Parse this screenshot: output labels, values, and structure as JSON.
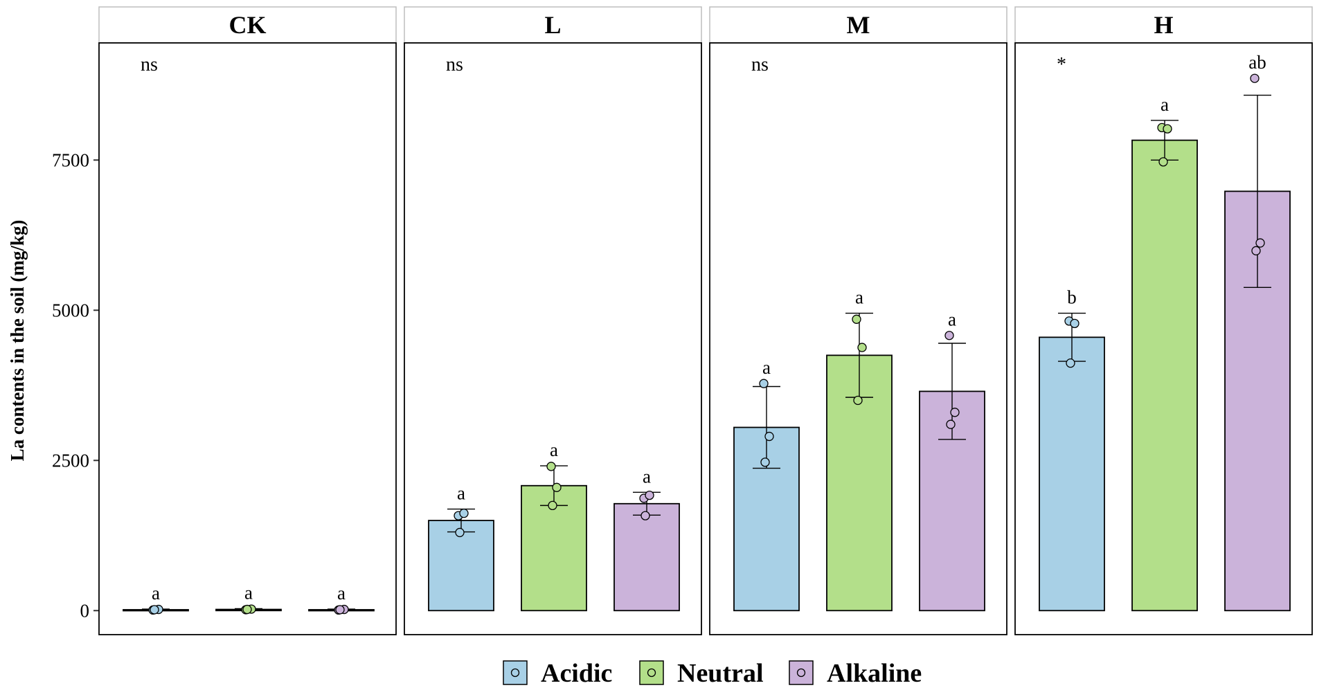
{
  "chart_data": {
    "type": "bar",
    "ylabel": "La contents in the soil (mg/kg)",
    "ylim": [
      -400,
      9450
    ],
    "yticks": [
      0,
      2500,
      5000,
      7500
    ],
    "error_bars": "SD",
    "groups": [
      "Acidic",
      "Neutral",
      "Alkaline"
    ],
    "colors": {
      "Acidic": "#a8d0e6",
      "Neutral": "#b3df8a",
      "Alkaline": "#cbb3da"
    },
    "legend": {
      "position": "bottom",
      "items": [
        {
          "label": "Acidic",
          "color": "#a8d0e6"
        },
        {
          "label": "Neutral",
          "color": "#b3df8a"
        },
        {
          "label": "Alkaline",
          "color": "#cbb3da"
        }
      ]
    },
    "panels": [
      {
        "title": "CK",
        "test": "ns",
        "bars": [
          {
            "group": "Acidic",
            "mean": 15,
            "sd": 10,
            "letter": "a",
            "points": [
              10,
              20,
              15
            ]
          },
          {
            "group": "Neutral",
            "mean": 20,
            "sd": 12,
            "letter": "a",
            "points": [
              15,
              25,
              20
            ]
          },
          {
            "group": "Alkaline",
            "mean": 15,
            "sd": 10,
            "letter": "a",
            "points": [
              10,
              20,
              15
            ]
          }
        ]
      },
      {
        "title": "L",
        "test": "ns",
        "bars": [
          {
            "group": "Acidic",
            "mean": 1500,
            "sd": 190,
            "letter": "a",
            "points": [
              1580,
              1620,
              1300
            ]
          },
          {
            "group": "Neutral",
            "mean": 2080,
            "sd": 330,
            "letter": "a",
            "points": [
              2400,
              2050,
              1750
            ]
          },
          {
            "group": "Alkaline",
            "mean": 1780,
            "sd": 190,
            "letter": "a",
            "points": [
              1870,
              1920,
              1580
            ]
          }
        ]
      },
      {
        "title": "M",
        "test": "ns",
        "bars": [
          {
            "group": "Acidic",
            "mean": 3050,
            "sd": 680,
            "letter": "a",
            "points": [
              3780,
              2900,
              2470
            ]
          },
          {
            "group": "Neutral",
            "mean": 4250,
            "sd": 700,
            "letter": "a",
            "points": [
              4850,
              4380,
              3500
            ]
          },
          {
            "group": "Alkaline",
            "mean": 3650,
            "sd": 800,
            "letter": "a",
            "points": [
              4580,
              3300,
              3100
            ]
          }
        ]
      },
      {
        "title": "H",
        "test": "*",
        "bars": [
          {
            "group": "Acidic",
            "mean": 4550,
            "sd": 400,
            "letter": "b",
            "points": [
              4820,
              4780,
              4120
            ]
          },
          {
            "group": "Neutral",
            "mean": 7830,
            "sd": 330,
            "letter": "a",
            "points": [
              8040,
              8020,
              7470
            ]
          },
          {
            "group": "Alkaline",
            "mean": 6980,
            "sd": 1600,
            "letter": "ab",
            "points": [
              8860,
              6120,
              5990
            ]
          }
        ]
      }
    ]
  }
}
